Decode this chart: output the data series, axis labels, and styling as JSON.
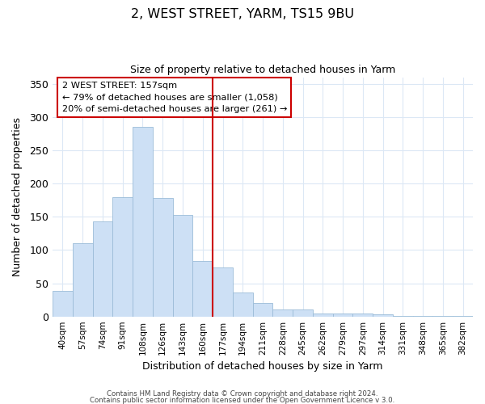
{
  "title": "2, WEST STREET, YARM, TS15 9BU",
  "subtitle": "Size of property relative to detached houses in Yarm",
  "xlabel": "Distribution of detached houses by size in Yarm",
  "ylabel": "Number of detached properties",
  "bar_labels": [
    "40sqm",
    "57sqm",
    "74sqm",
    "91sqm",
    "108sqm",
    "126sqm",
    "143sqm",
    "160sqm",
    "177sqm",
    "194sqm",
    "211sqm",
    "228sqm",
    "245sqm",
    "262sqm",
    "279sqm",
    "297sqm",
    "314sqm",
    "331sqm",
    "348sqm",
    "365sqm",
    "382sqm"
  ],
  "bar_values": [
    38,
    110,
    143,
    180,
    285,
    178,
    153,
    84,
    74,
    36,
    20,
    11,
    11,
    4,
    5,
    5,
    3,
    1,
    1,
    1,
    1
  ],
  "bar_color": "#cde0f5",
  "bar_edge_color": "#9bbcd8",
  "vline_x": 7.5,
  "vline_color": "#cc0000",
  "annotation_title": "2 WEST STREET: 157sqm",
  "annotation_line1": "← 79% of detached houses are smaller (1,058)",
  "annotation_line2": "20% of semi-detached houses are larger (261) →",
  "annotation_box_color": "#ffffff",
  "annotation_border_color": "#cc0000",
  "ylim": [
    0,
    360
  ],
  "yticks": [
    0,
    50,
    100,
    150,
    200,
    250,
    300,
    350
  ],
  "footer1": "Contains HM Land Registry data © Crown copyright and database right 2024.",
  "footer2": "Contains public sector information licensed under the Open Government Licence v 3.0.",
  "bg_color": "#ffffff",
  "grid_color": "#dce8f5"
}
